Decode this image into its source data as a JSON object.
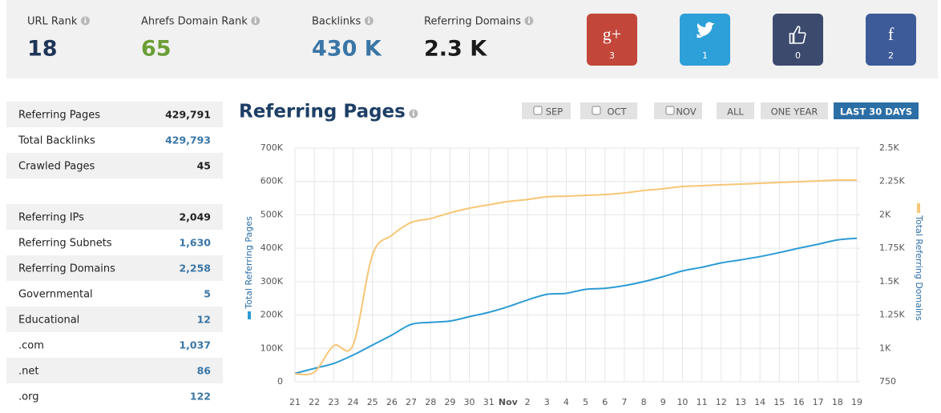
{
  "header": {
    "stats": [
      {
        "label": "URL Rank",
        "value": 18,
        "color": "#1d3557"
      },
      {
        "label": "Ahrefs Domain Rank",
        "value": 65,
        "color": "#6b9e35"
      },
      {
        "label": "Backlinks",
        "value": "430 K",
        "color": "#3a76a6"
      },
      {
        "label": "Referring Domains",
        "value": "2.3 K",
        "color": "#1a1a1a"
      }
    ],
    "social": [
      {
        "icon": "g+",
        "count": 3,
        "color": "#c2473a"
      },
      {
        "icon": "twitter",
        "count": 1,
        "color": "#2d9fd9"
      },
      {
        "icon": "like",
        "count": 0,
        "color": "#3c4a6d"
      },
      {
        "icon": "f",
        "count": 2,
        "color": "#3e5b99"
      }
    ]
  },
  "table": {
    "rows": [
      [
        "Referring Pages",
        "429,791"
      ],
      [
        "Total Backlinks",
        "429,793"
      ],
      [
        "Crawled Pages",
        "45"
      ],
      null,
      [
        "Referring IPs",
        "2,049"
      ],
      [
        "Referring Subnets",
        "1,630"
      ],
      [
        "Referring Domains",
        "2,258"
      ],
      [
        "Governmental",
        "5"
      ],
      [
        "Educational",
        "12"
      ],
      [
        ".com",
        "1,037"
      ],
      [
        ".net",
        "86"
      ],
      [
        ".org",
        "122"
      ]
    ],
    "value_colors": [
      "#222",
      "#3a76a6",
      "#222",
      null,
      "#222",
      "#3a76a6",
      "#3a76a6",
      "#3a76a6",
      "#3a76a6",
      "#3a76a6",
      "#3a76a6",
      "#3a76a6"
    ]
  },
  "buttons": [
    {
      "label": "SEP",
      "checkbox": true
    },
    {
      "label": "OCT",
      "checkbox": true
    },
    {
      "label": "NOV",
      "checkbox": true
    },
    {
      "label": "ALL"
    },
    {
      "label": "ONE YEAR"
    },
    {
      "label": "LAST 30 DAYS",
      "active": true
    }
  ],
  "chart_data": {
    "type": "line",
    "title": "Referring Pages",
    "categories": [
      "21",
      "22",
      "23",
      "24",
      "25",
      "26",
      "27",
      "28",
      "29",
      "30",
      "31",
      "Nov",
      "2",
      "3",
      "4",
      "5",
      "6",
      "7",
      "8",
      "9",
      "10",
      "11",
      "12",
      "13",
      "14",
      "15",
      "16",
      "17",
      "18",
      "19"
    ],
    "series": [
      {
        "name": "Total Referring Pages",
        "color": "#2b9bd6",
        "values": [
          25000,
          40000,
          55000,
          80000,
          110000,
          140000,
          172000,
          178000,
          182000,
          195000,
          208000,
          225000,
          245000,
          262000,
          265000,
          277000,
          280000,
          288000,
          300000,
          315000,
          332000,
          343000,
          356000,
          365000,
          375000,
          387000,
          400000,
          412000,
          425000,
          430000
        ]
      },
      {
        "name": "Total Referring Domains",
        "color": "#f7c675",
        "axis": "y2",
        "values": [
          810,
          822,
          1020,
          1025,
          1700,
          1847,
          1943,
          1972,
          2015,
          2050,
          2075,
          2100,
          2115,
          2135,
          2140,
          2146,
          2152,
          2164,
          2182,
          2195,
          2212,
          2218,
          2225,
          2230,
          2236,
          2242,
          2248,
          2254,
          2260,
          2260
        ]
      }
    ],
    "ylim": [
      0,
      700000
    ],
    "yticks": [
      0,
      {
        "value": 100000,
        "label": "100K"
      },
      {
        "value": 200000,
        "label": "200K"
      },
      {
        "value": 300000,
        "label": "300K"
      },
      {
        "value": 400000,
        "label": "400K"
      },
      {
        "value": 500000,
        "label": "500K"
      },
      {
        "value": 600000,
        "label": "600K"
      },
      {
        "value": 700000,
        "label": "700K"
      }
    ],
    "y2lim": [
      750,
      2500
    ],
    "y2ticks": [
      750,
      {
        "value": 1000,
        "label": "1K"
      },
      {
        "value": 1250,
        "label": "1.25K"
      },
      {
        "value": 1500,
        "label": "1.5K"
      },
      {
        "value": 1750,
        "label": "1.75K"
      },
      {
        "value": 2000,
        "label": "2K"
      },
      {
        "value": 2250,
        "label": "2.25K"
      },
      {
        "value": 2500,
        "label": "2.5K"
      }
    ],
    "grid": true
  }
}
